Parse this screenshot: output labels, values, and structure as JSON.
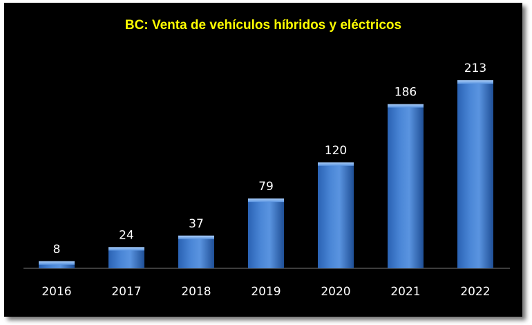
{
  "chart_data": {
    "type": "bar",
    "title": "BC: Venta de vehículos híbridos y eléctricos",
    "categories": [
      "2016",
      "2017",
      "2018",
      "2019",
      "2020",
      "2021",
      "2022"
    ],
    "values": [
      8,
      24,
      37,
      79,
      120,
      186,
      213
    ],
    "data_labels": [
      "8",
      "24",
      "37",
      "79",
      "120",
      "186",
      "213"
    ],
    "xlabel": "",
    "ylabel": "",
    "ylim": [
      0,
      235
    ],
    "grid": false,
    "legend": "none",
    "colors": {
      "background": "#000000",
      "title": "#ffff00",
      "bar_light": "#7fb0f0",
      "bar_mid": "#4a86d6",
      "bar_dark": "#1f4f96",
      "text": "#ffffff",
      "axis": "#888888"
    }
  }
}
